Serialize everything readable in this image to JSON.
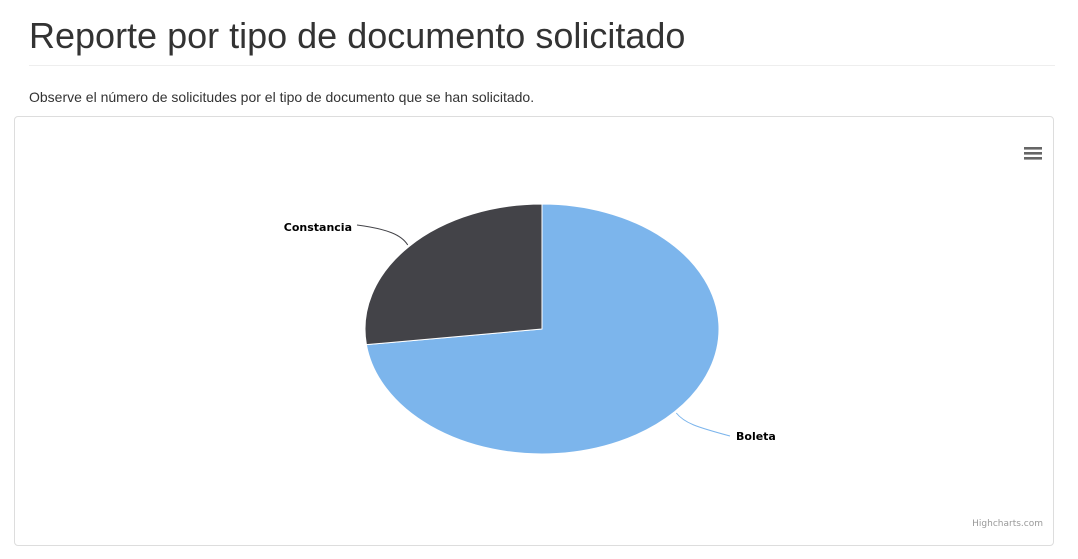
{
  "page": {
    "title": "Reporte por tipo de documento solicitado",
    "description": "Observe el número de solicitudes por el tipo de documento que se han solicitado."
  },
  "chart_menu": {
    "icon": "hamburger-menu-icon"
  },
  "credits": "Highcharts.com",
  "chart_data": {
    "type": "pie",
    "title": "",
    "series": [
      {
        "data": [
          {
            "name": "Boleta",
            "value": 73,
            "color": "#7cb5ec"
          },
          {
            "name": "Constancia",
            "value": 27,
            "color": "#434348"
          }
        ]
      }
    ],
    "start_angle_deg": 0,
    "data_labels": true,
    "legend": "none"
  }
}
